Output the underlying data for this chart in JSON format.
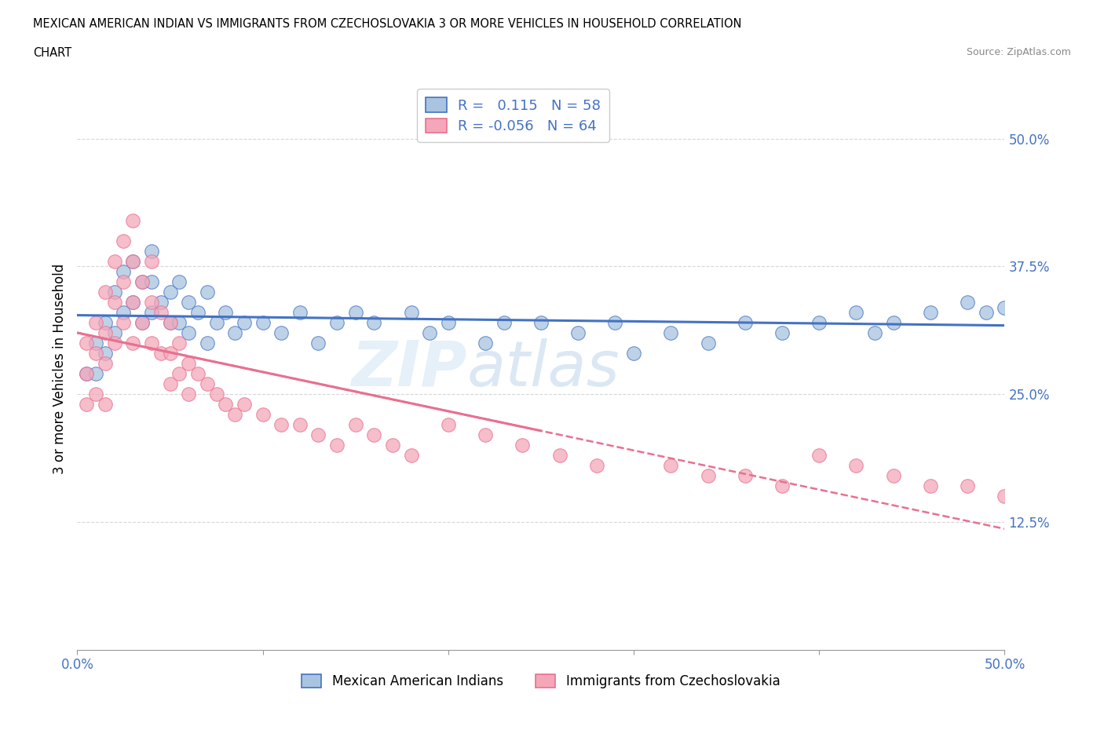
{
  "title_line1": "MEXICAN AMERICAN INDIAN VS IMMIGRANTS FROM CZECHOSLOVAKIA 3 OR MORE VEHICLES IN HOUSEHOLD CORRELATION",
  "title_line2": "CHART",
  "source": "Source: ZipAtlas.com",
  "ylabel": "3 or more Vehicles in Household",
  "xlim": [
    0.0,
    0.5
  ],
  "ylim": [
    0.0,
    0.55
  ],
  "xticks": [
    0.0,
    0.1,
    0.2,
    0.3,
    0.4,
    0.5
  ],
  "xticklabels": [
    "0.0%",
    "",
    "",
    "",
    "",
    "50.0%"
  ],
  "ytick_positions": [
    0.125,
    0.25,
    0.375,
    0.5
  ],
  "ytick_labels": [
    "12.5%",
    "25.0%",
    "37.5%",
    "50.0%"
  ],
  "R_blue": 0.115,
  "N_blue": 58,
  "R_pink": -0.056,
  "N_pink": 64,
  "color_blue": "#a8c4e0",
  "color_pink": "#f4a7b9",
  "line_blue": "#4472c4",
  "line_pink": "#e87090",
  "legend_label_blue": "Mexican American Indians",
  "legend_label_pink": "Immigrants from Czechoslovakia",
  "watermark_zip": "ZIP",
  "watermark_atlas": "atlas",
  "blue_x": [
    0.005,
    0.01,
    0.01,
    0.015,
    0.015,
    0.02,
    0.02,
    0.025,
    0.025,
    0.03,
    0.03,
    0.035,
    0.035,
    0.04,
    0.04,
    0.04,
    0.045,
    0.05,
    0.05,
    0.055,
    0.055,
    0.06,
    0.06,
    0.065,
    0.07,
    0.07,
    0.075,
    0.08,
    0.085,
    0.09,
    0.1,
    0.11,
    0.12,
    0.13,
    0.14,
    0.15,
    0.16,
    0.18,
    0.19,
    0.2,
    0.22,
    0.23,
    0.25,
    0.27,
    0.29,
    0.3,
    0.32,
    0.34,
    0.36,
    0.38,
    0.4,
    0.42,
    0.43,
    0.44,
    0.46,
    0.48,
    0.49,
    0.5
  ],
  "blue_y": [
    0.27,
    0.3,
    0.27,
    0.32,
    0.29,
    0.35,
    0.31,
    0.37,
    0.33,
    0.38,
    0.34,
    0.36,
    0.32,
    0.39,
    0.36,
    0.33,
    0.34,
    0.35,
    0.32,
    0.36,
    0.32,
    0.34,
    0.31,
    0.33,
    0.35,
    0.3,
    0.32,
    0.33,
    0.31,
    0.32,
    0.32,
    0.31,
    0.33,
    0.3,
    0.32,
    0.33,
    0.32,
    0.33,
    0.31,
    0.32,
    0.3,
    0.32,
    0.32,
    0.31,
    0.32,
    0.29,
    0.31,
    0.3,
    0.32,
    0.31,
    0.32,
    0.33,
    0.31,
    0.32,
    0.33,
    0.34,
    0.33,
    0.335
  ],
  "pink_x": [
    0.005,
    0.005,
    0.005,
    0.01,
    0.01,
    0.01,
    0.015,
    0.015,
    0.015,
    0.015,
    0.02,
    0.02,
    0.02,
    0.025,
    0.025,
    0.025,
    0.03,
    0.03,
    0.03,
    0.03,
    0.035,
    0.035,
    0.04,
    0.04,
    0.04,
    0.045,
    0.045,
    0.05,
    0.05,
    0.05,
    0.055,
    0.055,
    0.06,
    0.06,
    0.065,
    0.07,
    0.075,
    0.08,
    0.085,
    0.09,
    0.1,
    0.11,
    0.12,
    0.13,
    0.14,
    0.15,
    0.16,
    0.17,
    0.18,
    0.2,
    0.22,
    0.24,
    0.26,
    0.28,
    0.32,
    0.34,
    0.36,
    0.38,
    0.4,
    0.42,
    0.44,
    0.46,
    0.48,
    0.5
  ],
  "pink_y": [
    0.3,
    0.27,
    0.24,
    0.32,
    0.29,
    0.25,
    0.35,
    0.31,
    0.28,
    0.24,
    0.38,
    0.34,
    0.3,
    0.4,
    0.36,
    0.32,
    0.42,
    0.38,
    0.34,
    0.3,
    0.36,
    0.32,
    0.38,
    0.34,
    0.3,
    0.33,
    0.29,
    0.32,
    0.29,
    0.26,
    0.3,
    0.27,
    0.28,
    0.25,
    0.27,
    0.26,
    0.25,
    0.24,
    0.23,
    0.24,
    0.23,
    0.22,
    0.22,
    0.21,
    0.2,
    0.22,
    0.21,
    0.2,
    0.19,
    0.22,
    0.21,
    0.2,
    0.19,
    0.18,
    0.18,
    0.17,
    0.17,
    0.16,
    0.19,
    0.18,
    0.17,
    0.16,
    0.16,
    0.15
  ]
}
